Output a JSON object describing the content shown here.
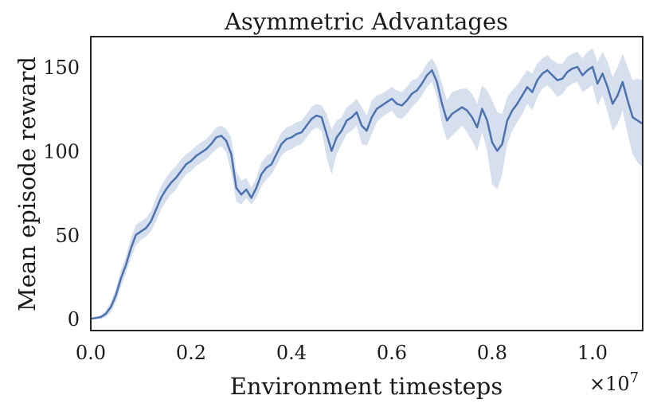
{
  "chart_data": {
    "type": "line",
    "title": "Asymmetric Advantages",
    "xlabel": "Environment timesteps",
    "ylabel": "Mean episode reward",
    "x_offset_label": "×10^7",
    "xlim": [
      0.0,
      1.1
    ],
    "ylim": [
      -7,
      168
    ],
    "xticks": [
      0.0,
      0.2,
      0.4,
      0.6,
      0.8,
      1.0
    ],
    "xtick_labels": [
      "0.0",
      "0.2",
      "0.4",
      "0.6",
      "0.8",
      "1.0"
    ],
    "yticks": [
      0,
      50,
      100,
      150
    ],
    "ytick_labels": [
      "0",
      "50",
      "100",
      "150"
    ],
    "grid": false,
    "colors": {
      "line": "#4c72b0",
      "band": "#c8d4e8",
      "axes": "#262626"
    },
    "series": [
      {
        "x": [
          0.0,
          0.02,
          0.03,
          0.04,
          0.05,
          0.06,
          0.07,
          0.08,
          0.09,
          0.1,
          0.11,
          0.12,
          0.13,
          0.14,
          0.15,
          0.16,
          0.17,
          0.18,
          0.19,
          0.2,
          0.21,
          0.22,
          0.23,
          0.24,
          0.25,
          0.26,
          0.27,
          0.28,
          0.29,
          0.3,
          0.31,
          0.32,
          0.33,
          0.34,
          0.35,
          0.36,
          0.37,
          0.38,
          0.39,
          0.4,
          0.41,
          0.42,
          0.43,
          0.44,
          0.45,
          0.46,
          0.47,
          0.48,
          0.49,
          0.5,
          0.51,
          0.52,
          0.53,
          0.54,
          0.55,
          0.56,
          0.57,
          0.58,
          0.59,
          0.6,
          0.61,
          0.62,
          0.63,
          0.64,
          0.65,
          0.66,
          0.67,
          0.68,
          0.69,
          0.7,
          0.71,
          0.72,
          0.73,
          0.74,
          0.75,
          0.76,
          0.77,
          0.78,
          0.79,
          0.8,
          0.81,
          0.82,
          0.83,
          0.84,
          0.85,
          0.86,
          0.87,
          0.88,
          0.89,
          0.9,
          0.91,
          0.92,
          0.93,
          0.94,
          0.95,
          0.96,
          0.97,
          0.98,
          0.99,
          1.0,
          1.01,
          1.02,
          1.03,
          1.04,
          1.05,
          1.06,
          1.07,
          1.08,
          1.09,
          1.1
        ],
        "y": [
          0,
          1,
          3,
          7,
          14,
          24,
          32,
          42,
          50,
          52,
          54,
          58,
          65,
          72,
          77,
          81,
          84,
          88,
          92,
          94,
          97,
          99,
          101,
          104,
          108,
          109,
          106,
          98,
          78,
          74,
          77,
          72,
          78,
          86,
          90,
          92,
          98,
          104,
          107,
          108,
          110,
          111,
          115,
          119,
          121,
          120,
          110,
          100,
          108,
          112,
          118,
          120,
          123,
          115,
          112,
          120,
          125,
          127,
          129,
          131,
          128,
          127,
          130,
          134,
          136,
          140,
          145,
          148,
          141,
          128,
          118,
          122,
          124,
          126,
          124,
          120,
          114,
          125,
          118,
          105,
          100,
          104,
          118,
          124,
          128,
          133,
          138,
          135,
          142,
          146,
          148,
          145,
          142,
          143,
          147,
          149,
          150,
          145,
          148,
          150,
          140,
          146,
          138,
          128,
          133,
          141,
          130,
          120,
          118,
          116
        ],
        "lower": [
          0,
          0,
          1,
          4,
          10,
          19,
          27,
          36,
          44,
          47,
          49,
          52,
          58,
          65,
          70,
          74,
          77,
          82,
          86,
          88,
          91,
          93,
          95,
          98,
          101,
          103,
          99,
          87,
          70,
          68,
          72,
          68,
          72,
          79,
          83,
          86,
          91,
          97,
          100,
          101,
          103,
          104,
          108,
          112,
          114,
          112,
          96,
          86,
          98,
          104,
          110,
          112,
          115,
          104,
          103,
          110,
          117,
          120,
          122,
          124,
          120,
          119,
          122,
          126,
          129,
          133,
          138,
          141,
          132,
          116,
          106,
          109,
          112,
          115,
          111,
          106,
          100,
          111,
          100,
          80,
          77,
          86,
          104,
          112,
          117,
          122,
          128,
          124,
          132,
          137,
          139,
          136,
          132,
          134,
          138,
          140,
          141,
          135,
          137,
          139,
          127,
          133,
          123,
          112,
          116,
          124,
          110,
          98,
          93,
          90
        ],
        "upper": [
          0,
          2,
          5,
          10,
          18,
          29,
          37,
          48,
          56,
          58,
          60,
          64,
          72,
          79,
          84,
          88,
          91,
          95,
          98,
          100,
          103,
          105,
          107,
          110,
          114,
          115,
          113,
          108,
          88,
          82,
          84,
          78,
          84,
          93,
          97,
          99,
          105,
          111,
          114,
          115,
          117,
          118,
          122,
          126,
          128,
          127,
          122,
          113,
          118,
          120,
          126,
          128,
          131,
          126,
          121,
          130,
          133,
          134,
          136,
          138,
          136,
          135,
          138,
          142,
          143,
          147,
          152,
          155,
          150,
          140,
          130,
          135,
          136,
          137,
          137,
          134,
          128,
          139,
          136,
          130,
          123,
          122,
          132,
          136,
          139,
          144,
          148,
          146,
          152,
          155,
          157,
          154,
          152,
          152,
          156,
          158,
          159,
          155,
          159,
          161,
          153,
          159,
          153,
          144,
          150,
          158,
          150,
          142,
          143,
          142
        ]
      }
    ]
  }
}
